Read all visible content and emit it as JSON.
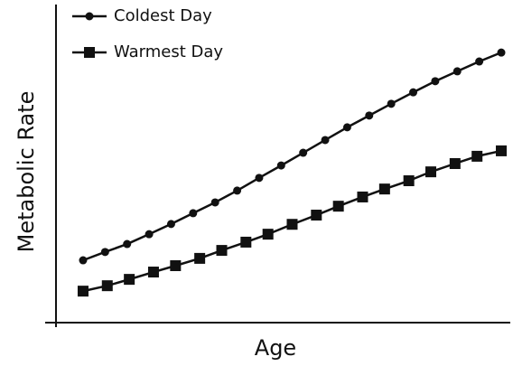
{
  "chart_data": {
    "type": "line",
    "xlabel": "Age",
    "ylabel": "Metabolic Rate",
    "xlim": [
      -0.23,
      20.41
    ],
    "ylim": [
      0,
      100
    ],
    "legend": "upper left",
    "series": [
      {
        "name": "Coldest Day",
        "color": "#111111",
        "marker": "circle",
        "x": [
          1,
          2,
          3,
          4,
          5,
          6,
          7,
          8,
          9,
          10,
          11,
          12,
          13,
          14,
          15,
          16,
          17,
          18,
          19,
          20
        ],
        "values": [
          19.6,
          22.2,
          24.7,
          27.8,
          31.0,
          34.4,
          37.8,
          41.5,
          45.5,
          49.4,
          53.4,
          57.4,
          61.4,
          65.1,
          68.8,
          72.4,
          75.9,
          79.0,
          82.1,
          84.9
        ]
      },
      {
        "name": "Warmest Day",
        "color": "#111111",
        "marker": "square",
        "x": [
          1,
          2.1,
          3.1,
          4.2,
          5.2,
          6.3,
          7.3,
          8.4,
          9.4,
          10.5,
          11.6,
          12.6,
          13.7,
          14.7,
          15.8,
          16.8,
          17.9,
          18.9,
          20
        ],
        "values": [
          9.9,
          11.6,
          13.6,
          15.9,
          17.9,
          20.2,
          22.7,
          25.3,
          27.8,
          30.9,
          33.8,
          36.6,
          39.5,
          42.0,
          44.6,
          47.4,
          50.0,
          52.3,
          54.0
        ]
      }
    ]
  }
}
